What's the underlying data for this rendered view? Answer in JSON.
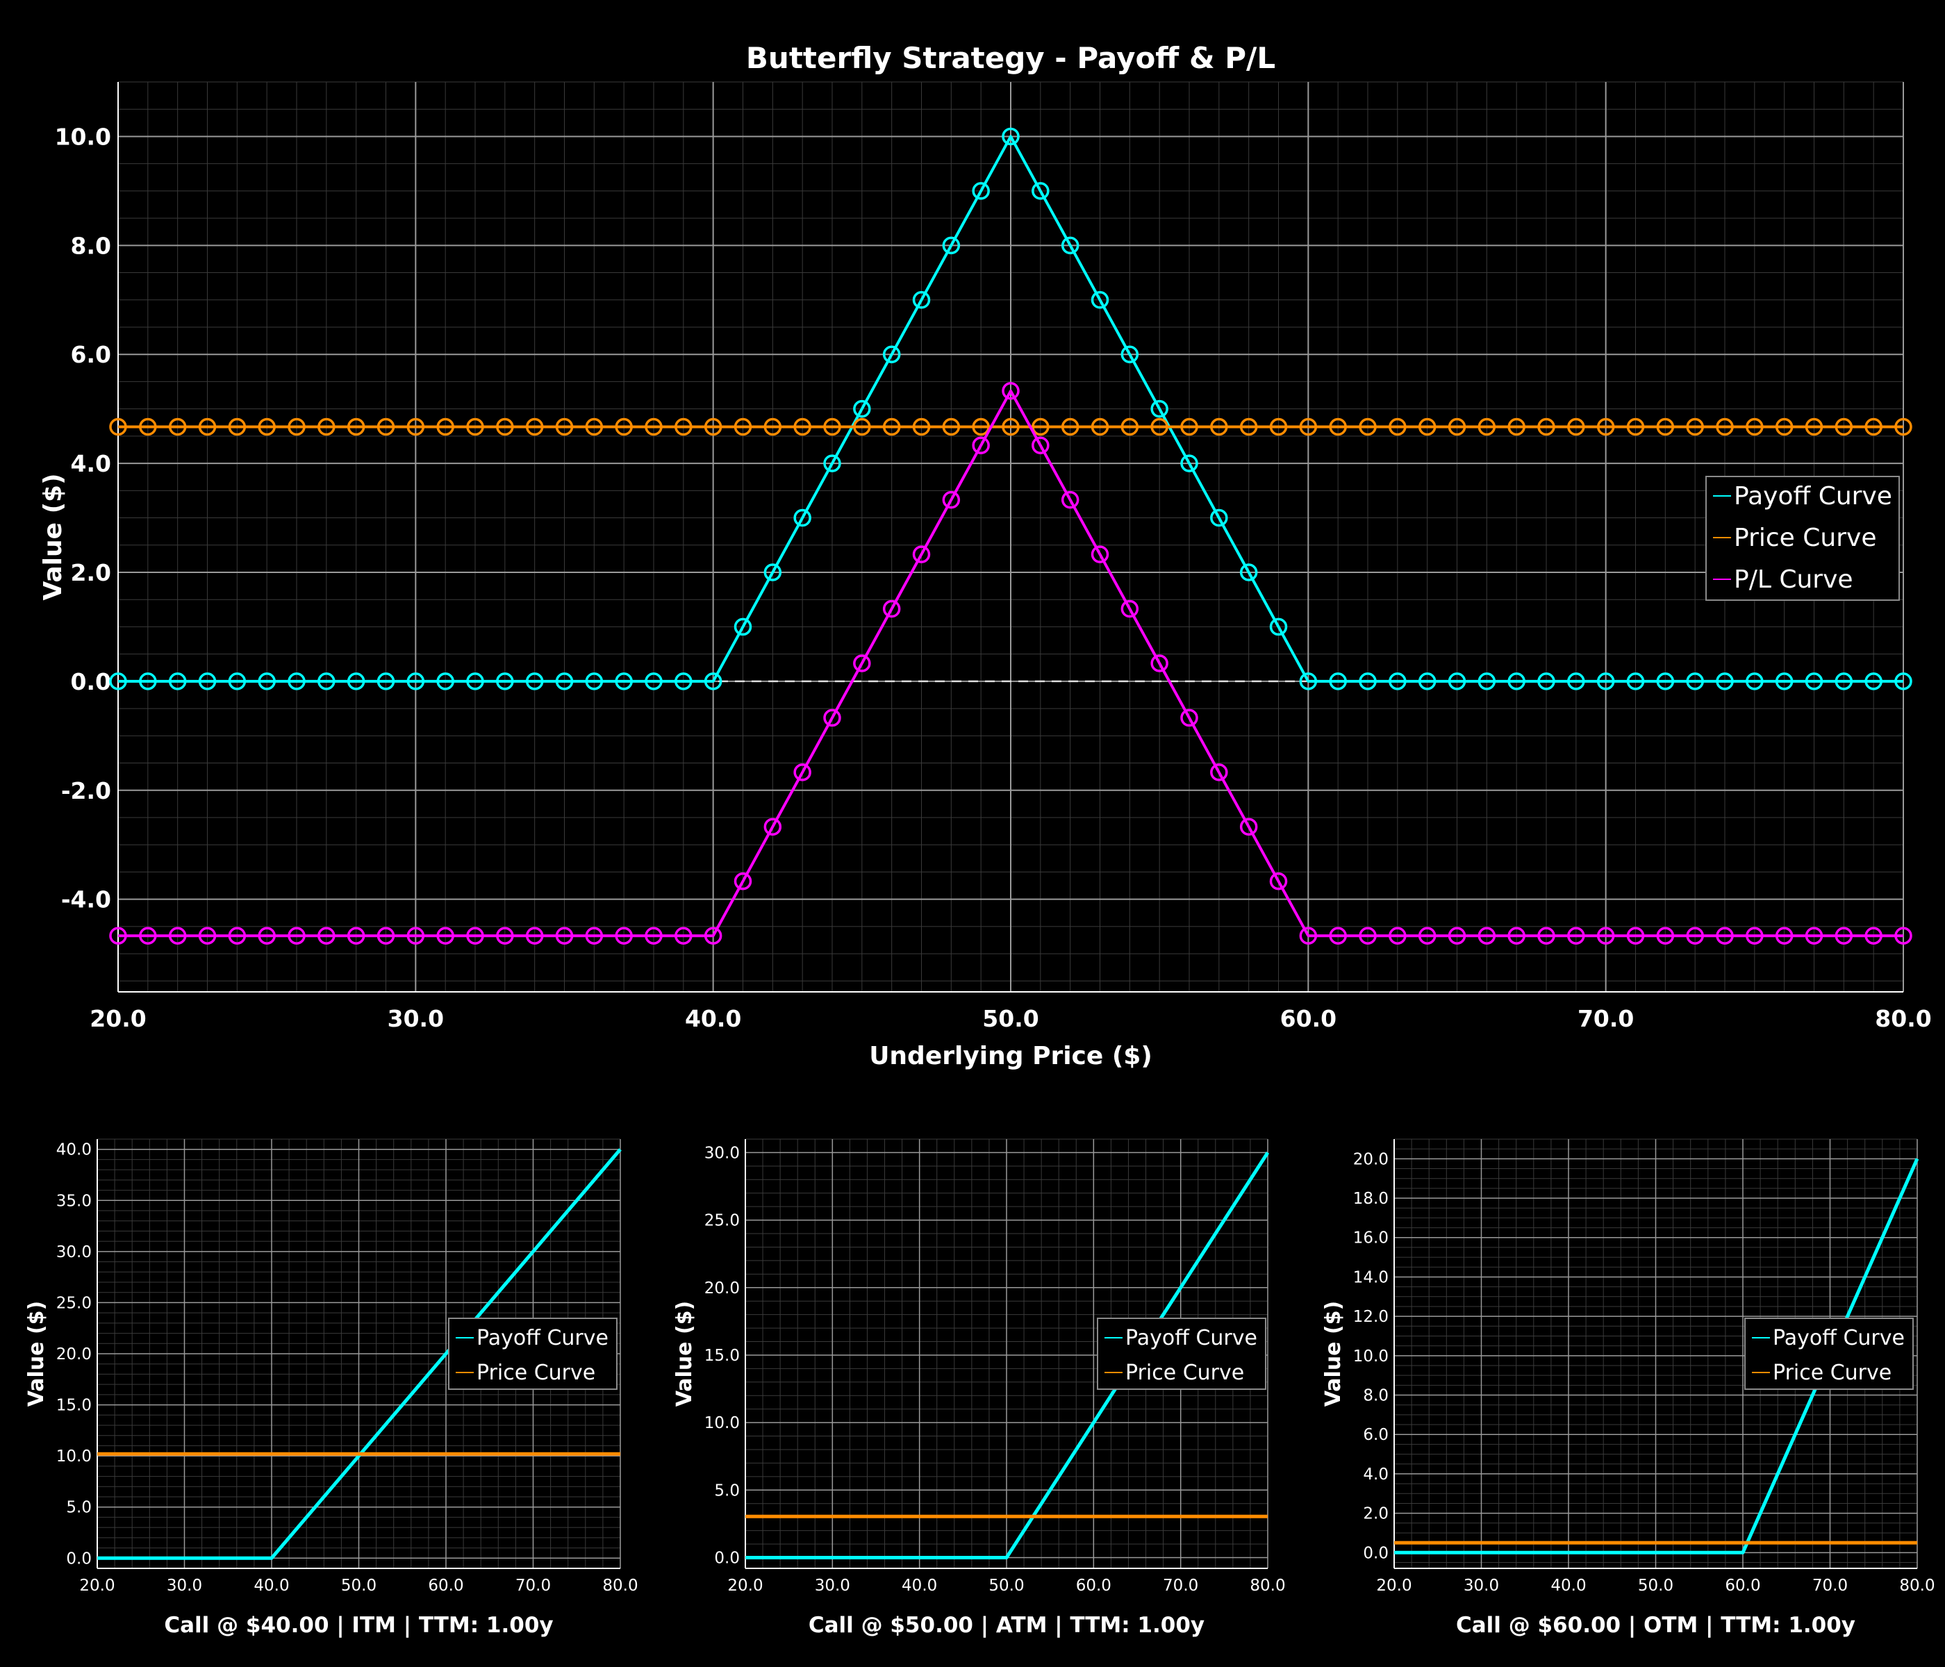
{
  "chart_data": [
    {
      "type": "line",
      "title": "Butterfly Strategy - Payoff & P/L",
      "xlabel": "Underlying Price ($)",
      "ylabel": "Value ($)",
      "xlim": [
        20,
        80
      ],
      "ylim": [
        -5.7,
        11
      ],
      "xticks": [
        "20.0",
        "30.0",
        "40.0",
        "50.0",
        "60.0",
        "70.0",
        "80.0"
      ],
      "yticks": [
        "-4.0",
        "-2.0",
        "0.0",
        "2.0",
        "4.0",
        "6.0",
        "8.0",
        "10.0"
      ],
      "grid": true,
      "zero_line": true,
      "legend_position": "center-right",
      "markers": "hollow-circle",
      "x": [
        20,
        21,
        22,
        23,
        24,
        25,
        26,
        27,
        28,
        29,
        30,
        31,
        32,
        33,
        34,
        35,
        36,
        37,
        38,
        39,
        40,
        41,
        42,
        43,
        44,
        45,
        46,
        47,
        48,
        49,
        50,
        51,
        52,
        53,
        54,
        55,
        56,
        57,
        58,
        59,
        60,
        61,
        62,
        63,
        64,
        65,
        66,
        67,
        68,
        69,
        70,
        71,
        72,
        73,
        74,
        75,
        76,
        77,
        78,
        79,
        80
      ],
      "series": [
        {
          "name": "Payoff Curve",
          "color": "#00ffff",
          "values": [
            0,
            0,
            0,
            0,
            0,
            0,
            0,
            0,
            0,
            0,
            0,
            0,
            0,
            0,
            0,
            0,
            0,
            0,
            0,
            0,
            0,
            1,
            2,
            3,
            4,
            5,
            6,
            7,
            8,
            9,
            10,
            9,
            8,
            7,
            6,
            5,
            4,
            3,
            2,
            1,
            0,
            0,
            0,
            0,
            0,
            0,
            0,
            0,
            0,
            0,
            0,
            0,
            0,
            0,
            0,
            0,
            0,
            0,
            0,
            0,
            0
          ]
        },
        {
          "name": "Price Curve",
          "color": "#ff8c00",
          "values": [
            4.67,
            4.67,
            4.67,
            4.67,
            4.67,
            4.67,
            4.67,
            4.67,
            4.67,
            4.67,
            4.67,
            4.67,
            4.67,
            4.67,
            4.67,
            4.67,
            4.67,
            4.67,
            4.67,
            4.67,
            4.67,
            4.67,
            4.67,
            4.67,
            4.67,
            4.67,
            4.67,
            4.67,
            4.67,
            4.67,
            4.67,
            4.67,
            4.67,
            4.67,
            4.67,
            4.67,
            4.67,
            4.67,
            4.67,
            4.67,
            4.67,
            4.67,
            4.67,
            4.67,
            4.67,
            4.67,
            4.67,
            4.67,
            4.67,
            4.67,
            4.67,
            4.67,
            4.67,
            4.67,
            4.67,
            4.67,
            4.67,
            4.67,
            4.67,
            4.67,
            4.67
          ]
        },
        {
          "name": "P/L Curve",
          "color": "#ff00ff",
          "values": [
            -4.67,
            -4.67,
            -4.67,
            -4.67,
            -4.67,
            -4.67,
            -4.67,
            -4.67,
            -4.67,
            -4.67,
            -4.67,
            -4.67,
            -4.67,
            -4.67,
            -4.67,
            -4.67,
            -4.67,
            -4.67,
            -4.67,
            -4.67,
            -4.67,
            -3.67,
            -2.67,
            -1.67,
            -0.67,
            0.33,
            1.33,
            2.33,
            3.33,
            4.33,
            5.33,
            4.33,
            3.33,
            2.33,
            1.33,
            0.33,
            -0.67,
            -1.67,
            -2.67,
            -3.67,
            -4.67,
            -4.67,
            -4.67,
            -4.67,
            -4.67,
            -4.67,
            -4.67,
            -4.67,
            -4.67,
            -4.67,
            -4.67,
            -4.67,
            -4.67,
            -4.67,
            -4.67,
            -4.67,
            -4.67,
            -4.67,
            -4.67,
            -4.67,
            -4.67
          ]
        }
      ]
    },
    {
      "type": "line",
      "title": "",
      "xlabel": "Call @ $40.00 | ITM | TTM: 1.00y",
      "ylabel": "Value ($)",
      "xlim": [
        20,
        80
      ],
      "ylim": [
        -1,
        41
      ],
      "xticks": [
        "20.0",
        "30.0",
        "40.0",
        "50.0",
        "60.0",
        "70.0",
        "80.0"
      ],
      "yticks": [
        "0.0",
        "5.0",
        "10.0",
        "15.0",
        "20.0",
        "25.0",
        "30.0",
        "35.0",
        "40.0"
      ],
      "grid": true,
      "legend_position": "center-right",
      "x": [
        20,
        40,
        80
      ],
      "series": [
        {
          "name": "Payoff Curve",
          "color": "#00ffff",
          "values": [
            0,
            0,
            40
          ]
        },
        {
          "name": "Price Curve",
          "color": "#ff8c00",
          "values": [
            10.2,
            10.2,
            10.2
          ]
        }
      ]
    },
    {
      "type": "line",
      "title": "",
      "xlabel": "Call @ $50.00 | ATM | TTM: 1.00y",
      "ylabel": "Value ($)",
      "xlim": [
        20,
        80
      ],
      "ylim": [
        -0.8,
        31
      ],
      "xticks": [
        "20.0",
        "30.0",
        "40.0",
        "50.0",
        "60.0",
        "70.0",
        "80.0"
      ],
      "yticks": [
        "0.0",
        "5.0",
        "10.0",
        "15.0",
        "20.0",
        "25.0",
        "30.0"
      ],
      "grid": true,
      "legend_position": "center-right",
      "x": [
        20,
        50,
        80
      ],
      "series": [
        {
          "name": "Payoff Curve",
          "color": "#00ffff",
          "values": [
            0,
            0,
            30
          ]
        },
        {
          "name": "Price Curve",
          "color": "#ff8c00",
          "values": [
            3.05,
            3.05,
            3.05
          ]
        }
      ]
    },
    {
      "type": "line",
      "title": "",
      "xlabel": "Call @ $60.00 | OTM | TTM: 1.00y",
      "ylabel": "Value ($)",
      "xlim": [
        20,
        80
      ],
      "ylim": [
        -0.8,
        21
      ],
      "xticks": [
        "20.0",
        "30.0",
        "40.0",
        "50.0",
        "60.0",
        "70.0",
        "80.0"
      ],
      "yticks": [
        "0.0",
        "2.0",
        "4.0",
        "6.0",
        "8.0",
        "10.0",
        "12.0",
        "14.0",
        "16.0",
        "18.0",
        "20.0"
      ],
      "grid": true,
      "legend_position": "center-right",
      "x": [
        20,
        60,
        80
      ],
      "series": [
        {
          "name": "Payoff Curve",
          "color": "#00ffff",
          "values": [
            0,
            0,
            20
          ]
        },
        {
          "name": "Price Curve",
          "color": "#ff8c00",
          "values": [
            0.5,
            0.5,
            0.5
          ]
        }
      ]
    }
  ]
}
